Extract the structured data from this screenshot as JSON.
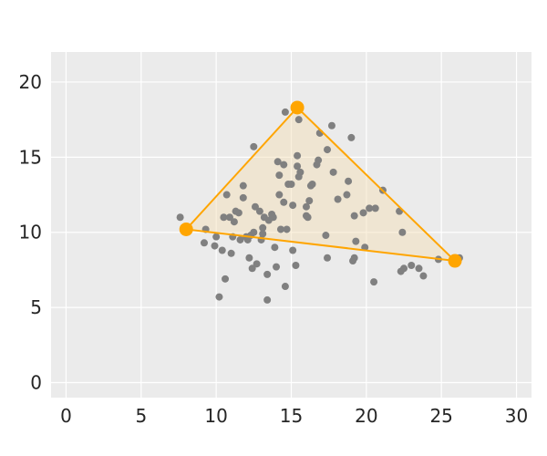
{
  "chart_data": {
    "type": "scatter",
    "title": "",
    "xlabel": "",
    "ylabel": "",
    "xlim": [
      -1,
      31
    ],
    "ylim": [
      -1,
      22
    ],
    "xticks": [
      0,
      5,
      10,
      15,
      20,
      25,
      30
    ],
    "yticks": [
      0,
      5,
      10,
      15,
      20
    ],
    "xtick_labels": [
      "0",
      "5",
      "10",
      "15",
      "20",
      "25",
      "30"
    ],
    "ytick_labels": [
      "0",
      "5",
      "10",
      "15",
      "20"
    ],
    "grid": true,
    "background_color": "#ebebeb",
    "grid_color": "#ffffff",
    "series": [
      {
        "kind": "scatter",
        "color": "#808080",
        "points": [
          [
            7.6,
            11.0
          ],
          [
            9.2,
            9.3
          ],
          [
            9.3,
            10.2
          ],
          [
            9.9,
            9.1
          ],
          [
            10.0,
            9.7
          ],
          [
            10.2,
            5.7
          ],
          [
            10.4,
            8.8
          ],
          [
            10.5,
            11.0
          ],
          [
            10.6,
            6.9
          ],
          [
            10.7,
            12.5
          ],
          [
            10.9,
            11.0
          ],
          [
            11.0,
            8.6
          ],
          [
            11.1,
            9.7
          ],
          [
            11.2,
            10.7
          ],
          [
            11.3,
            11.4
          ],
          [
            11.5,
            11.3
          ],
          [
            11.6,
            9.5
          ],
          [
            11.8,
            12.3
          ],
          [
            11.8,
            13.1
          ],
          [
            12.0,
            9.7
          ],
          [
            12.1,
            9.5
          ],
          [
            12.2,
            8.3
          ],
          [
            12.3,
            9.8
          ],
          [
            12.4,
            7.6
          ],
          [
            12.5,
            10.0
          ],
          [
            12.5,
            15.7
          ],
          [
            12.6,
            11.7
          ],
          [
            12.7,
            7.9
          ],
          [
            12.9,
            11.4
          ],
          [
            13.0,
            9.5
          ],
          [
            13.1,
            9.9
          ],
          [
            13.1,
            10.3
          ],
          [
            13.2,
            11.0
          ],
          [
            13.4,
            5.5
          ],
          [
            13.4,
            7.2
          ],
          [
            13.5,
            10.8
          ],
          [
            13.7,
            11.2
          ],
          [
            13.8,
            11.0
          ],
          [
            13.9,
            9.0
          ],
          [
            14.0,
            7.7
          ],
          [
            14.1,
            14.7
          ],
          [
            14.2,
            12.5
          ],
          [
            14.2,
            13.8
          ],
          [
            14.3,
            10.2
          ],
          [
            14.5,
            12.0
          ],
          [
            14.5,
            14.5
          ],
          [
            14.6,
            6.4
          ],
          [
            14.6,
            18.0
          ],
          [
            14.7,
            10.2
          ],
          [
            14.8,
            13.2
          ],
          [
            15.0,
            13.2
          ],
          [
            15.1,
            8.8
          ],
          [
            15.1,
            11.8
          ],
          [
            15.3,
            7.8
          ],
          [
            15.4,
            14.4
          ],
          [
            15.4,
            15.1
          ],
          [
            15.5,
            13.7
          ],
          [
            15.5,
            17.5
          ],
          [
            15.6,
            14.0
          ],
          [
            16.0,
            11.1
          ],
          [
            16.0,
            11.7
          ],
          [
            16.1,
            11.0
          ],
          [
            16.2,
            12.1
          ],
          [
            16.3,
            13.1
          ],
          [
            16.4,
            13.2
          ],
          [
            16.7,
            14.5
          ],
          [
            16.8,
            14.8
          ],
          [
            16.9,
            16.6
          ],
          [
            17.3,
            9.8
          ],
          [
            17.4,
            8.3
          ],
          [
            17.4,
            15.5
          ],
          [
            17.7,
            17.1
          ],
          [
            17.8,
            14.0
          ],
          [
            18.1,
            12.2
          ],
          [
            18.7,
            12.5
          ],
          [
            18.8,
            13.4
          ],
          [
            19.0,
            16.3
          ],
          [
            19.1,
            8.1
          ],
          [
            19.2,
            8.3
          ],
          [
            19.2,
            11.1
          ],
          [
            19.3,
            9.4
          ],
          [
            19.8,
            11.3
          ],
          [
            19.9,
            9.0
          ],
          [
            20.2,
            11.6
          ],
          [
            20.5,
            6.7
          ],
          [
            20.6,
            11.6
          ],
          [
            21.1,
            12.8
          ],
          [
            22.2,
            11.4
          ],
          [
            22.3,
            7.4
          ],
          [
            22.4,
            10.0
          ],
          [
            22.5,
            7.6
          ],
          [
            23.0,
            7.8
          ],
          [
            23.5,
            7.6
          ],
          [
            23.8,
            7.1
          ],
          [
            24.8,
            8.2
          ],
          [
            26.2,
            8.3
          ]
        ]
      },
      {
        "kind": "polygon",
        "color": "#ffa500",
        "fill_color": "#f5deb3",
        "vertices": [
          [
            8.0,
            10.2
          ],
          [
            15.4,
            18.3
          ],
          [
            25.9,
            8.1
          ]
        ]
      }
    ]
  }
}
